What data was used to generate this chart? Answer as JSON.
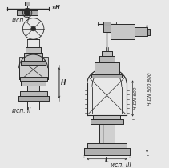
{
  "bg_color": "#e8e8e8",
  "line_color": "#2a2a2a",
  "fig_width": 2.11,
  "fig_height": 2.1,
  "dpi": 100,
  "labels": {
    "usp1": "исп. I",
    "usp2": "исп. II",
    "usp3": "исп. III",
    "H1": "H",
    "H2": "H",
    "L": "L",
    "dim1": "H-DN 600",
    "dim2": "H-DN 500,800"
  }
}
